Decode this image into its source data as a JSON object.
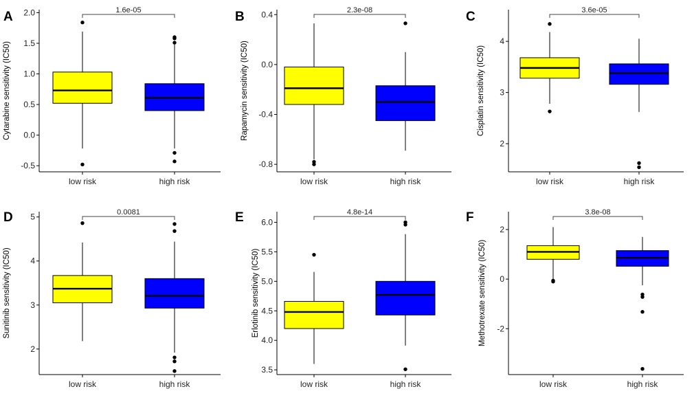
{
  "chart_data": [
    {
      "panel": "A",
      "type": "box",
      "ylabel": "Cytarabine sensitivity (IC50)",
      "categories": [
        "low risk",
        "high risk"
      ],
      "ylim": [
        -0.6,
        2.05
      ],
      "yticks": [
        -0.5,
        0.0,
        0.5,
        1.0,
        1.5,
        2.0
      ],
      "ytick_labels": [
        "-0.5",
        "0.0",
        "0.5",
        "1.0",
        "1.5",
        "2.0"
      ],
      "pvalue": "1.6e-05",
      "boxes": [
        {
          "name": "low risk",
          "whisker_low": -0.22,
          "q1": 0.52,
          "median": 0.73,
          "q3": 1.03,
          "whisker_high": 1.69,
          "outliers": [
            1.84,
            -0.48
          ]
        },
        {
          "name": "high risk",
          "whisker_low": -0.22,
          "q1": 0.4,
          "median": 0.61,
          "q3": 0.84,
          "whisker_high": 1.48,
          "outliers": [
            1.6,
            1.58,
            1.51,
            -0.29,
            -0.43
          ]
        }
      ]
    },
    {
      "panel": "B",
      "type": "box",
      "ylabel": "Rapamycin sensitivity (IC50)",
      "categories": [
        "low risk",
        "high risk"
      ],
      "ylim": [
        -0.86,
        0.44
      ],
      "yticks": [
        -0.8,
        -0.4,
        0.0,
        0.4
      ],
      "ytick_labels": [
        "-0.8",
        "-0.4",
        "0.0",
        "0.4"
      ],
      "pvalue": "2.3e-08",
      "boxes": [
        {
          "name": "low risk",
          "whisker_low": -0.76,
          "q1": -0.32,
          "median": -0.19,
          "q3": -0.02,
          "whisker_high": 0.33,
          "outliers": [
            -0.78,
            -0.8
          ]
        },
        {
          "name": "high risk",
          "whisker_low": -0.69,
          "q1": -0.45,
          "median": -0.3,
          "q3": -0.17,
          "whisker_high": 0.1,
          "outliers": [
            0.33
          ]
        }
      ]
    },
    {
      "panel": "C",
      "type": "box",
      "ylabel": "Cisplatin sensitivity (IC50)",
      "categories": [
        "low risk",
        "high risk"
      ],
      "ylim": [
        1.45,
        4.62
      ],
      "yticks": [
        2,
        3,
        4
      ],
      "ytick_labels": [
        "2",
        "3",
        "4"
      ],
      "pvalue": "3.6e-05",
      "boxes": [
        {
          "name": "low risk",
          "whisker_low": 2.78,
          "q1": 3.28,
          "median": 3.48,
          "q3": 3.68,
          "whisker_high": 4.18,
          "outliers": [
            4.34,
            2.63
          ]
        },
        {
          "name": "high risk",
          "whisker_low": 2.62,
          "q1": 3.16,
          "median": 3.38,
          "q3": 3.56,
          "whisker_high": 4.05,
          "outliers": [
            1.62,
            1.54
          ]
        }
      ]
    },
    {
      "panel": "D",
      "type": "box",
      "ylabel": "Sunitinib sensitivity (IC50)",
      "categories": [
        "low risk",
        "high risk"
      ],
      "ylim": [
        1.42,
        5.12
      ],
      "yticks": [
        2,
        3,
        4,
        5
      ],
      "ytick_labels": [
        "2",
        "3",
        "4",
        "5"
      ],
      "pvalue": "0.0081",
      "boxes": [
        {
          "name": "low risk",
          "whisker_low": 2.18,
          "q1": 3.05,
          "median": 3.37,
          "q3": 3.67,
          "whisker_high": 4.42,
          "outliers": [
            4.86
          ]
        },
        {
          "name": "high risk",
          "whisker_low": 1.92,
          "q1": 2.93,
          "median": 3.21,
          "q3": 3.6,
          "whisker_high": 4.44,
          "outliers": [
            4.84,
            4.68,
            1.81,
            1.72,
            1.5
          ]
        }
      ]
    },
    {
      "panel": "E",
      "type": "box",
      "ylabel": "Erlotinib sensitivity (IC50)",
      "categories": [
        "low risk",
        "high risk"
      ],
      "ylim": [
        3.42,
        6.18
      ],
      "yticks": [
        3.5,
        4.0,
        4.5,
        5.0,
        5.5,
        6.0
      ],
      "ytick_labels": [
        "3.5",
        "4.0",
        "4.5",
        "5.0",
        "5.5",
        "6.0"
      ],
      "pvalue": "4.8e-14",
      "boxes": [
        {
          "name": "low risk",
          "whisker_low": 3.6,
          "q1": 4.2,
          "median": 4.48,
          "q3": 4.66,
          "whisker_high": 5.16,
          "outliers": [
            5.45
          ]
        },
        {
          "name": "high risk",
          "whisker_low": 3.91,
          "q1": 4.43,
          "median": 4.77,
          "q3": 5.0,
          "whisker_high": 5.8,
          "outliers": [
            6.0,
            5.96,
            3.51
          ]
        }
      ]
    },
    {
      "panel": "F",
      "type": "box",
      "ylabel": "Methotrexate sensitivity (IC50)",
      "categories": [
        "low risk",
        "high risk"
      ],
      "ylim": [
        -3.85,
        2.72
      ],
      "yticks": [
        -2,
        0,
        2
      ],
      "ytick_labels": [
        "-2",
        "0",
        "2"
      ],
      "pvalue": "3.8e-08",
      "boxes": [
        {
          "name": "low risk",
          "whisker_low": -0.05,
          "q1": 0.8,
          "median": 1.1,
          "q3": 1.35,
          "whisker_high": 2.1,
          "outliers": [
            -0.06,
            -0.1
          ]
        },
        {
          "name": "high risk",
          "whisker_low": -0.25,
          "q1": 0.52,
          "median": 0.86,
          "q3": 1.15,
          "whisker_high": 1.7,
          "outliers": [
            -0.62,
            -0.72,
            -1.32,
            -3.62
          ]
        }
      ]
    }
  ],
  "colors": {
    "low_risk_fill": "#FFFF00",
    "high_risk_fill": "#0000FF",
    "stroke": "#000000",
    "bracket": "#444444",
    "panel_letter": "#000000"
  }
}
